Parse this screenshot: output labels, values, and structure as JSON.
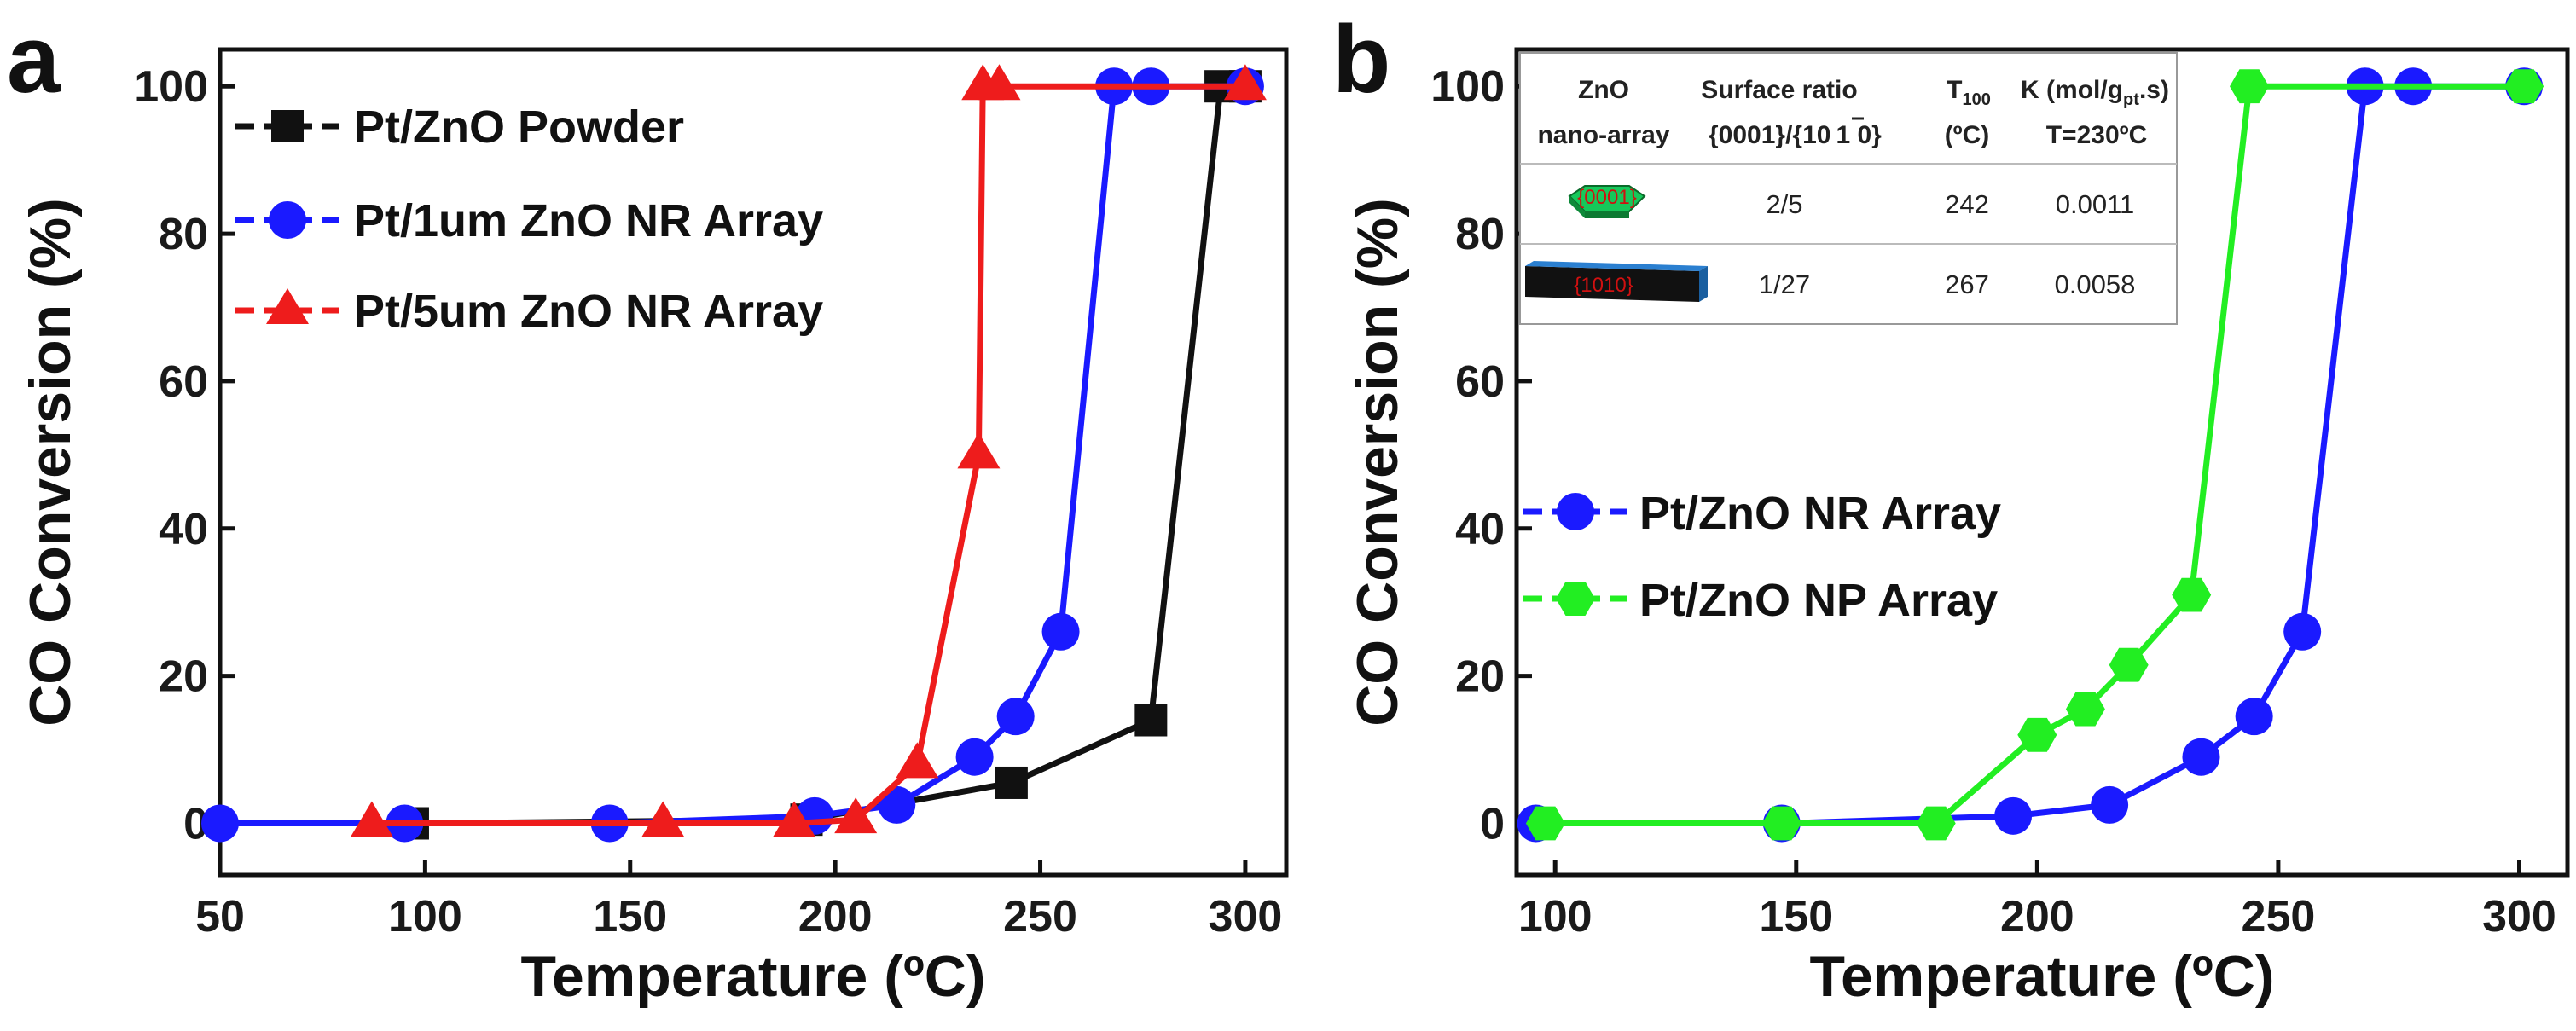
{
  "chart_data": [
    {
      "type": "line",
      "panel_label": "a",
      "xlabel": "Temperature (ºC)",
      "ylabel": "CO Conversion (%)",
      "xlim": [
        50,
        310
      ],
      "ylim": [
        -7,
        105
      ],
      "xticks": [
        "50",
        "100",
        "150",
        "200",
        "250",
        "300"
      ],
      "yticks": [
        "0",
        "20",
        "40",
        "60",
        "80",
        "100"
      ],
      "legend_position": "top-left",
      "series": [
        {
          "name": "Pt/ZnO Powder",
          "color": "#111111",
          "marker": "square",
          "x": [
            97,
            193,
            243,
            277,
            294,
            300
          ],
          "y": [
            0,
            0.5,
            5.5,
            14,
            100,
            100
          ]
        },
        {
          "name": "Pt/1um ZnO NR Array",
          "color": "#1a1aff",
          "marker": "circle",
          "x": [
            50,
            95,
            145,
            195,
            215,
            234,
            244,
            255,
            268,
            277,
            300
          ],
          "y": [
            0,
            0,
            0,
            1,
            2.5,
            9,
            14.5,
            26,
            100,
            100,
            100
          ]
        },
        {
          "name": "Pt/5um ZnO NR Array",
          "color": "#ee1c1c",
          "marker": "triangle",
          "x": [
            87,
            158,
            190,
            205,
            220,
            235,
            236,
            240,
            300
          ],
          "y": [
            0,
            0,
            0,
            0.5,
            8,
            50,
            100,
            100,
            100
          ]
        }
      ]
    },
    {
      "type": "line",
      "panel_label": "b",
      "xlabel": "Temperature (ºC)",
      "ylabel": "CO Conversion (%)",
      "xlim": [
        92,
        310
      ],
      "ylim": [
        -7,
        105
      ],
      "xticks": [
        "100",
        "150",
        "200",
        "250",
        "300"
      ],
      "yticks": [
        "0",
        "20",
        "40",
        "60",
        "80",
        "100"
      ],
      "legend_position": "middle-left",
      "series": [
        {
          "name": "Pt/ZnO NR Array",
          "color": "#1a1aff",
          "marker": "circle",
          "x": [
            96,
            147,
            195,
            215,
            234,
            245,
            255,
            268,
            278,
            301
          ],
          "y": [
            0,
            0,
            1,
            2.5,
            9,
            14.5,
            26,
            100,
            100,
            100
          ]
        },
        {
          "name": "Pt/ZnO NP Array",
          "color": "#22ee22",
          "marker": "hexagon",
          "x": [
            98,
            147,
            179,
            200,
            210,
            219,
            232,
            244,
            301
          ],
          "y": [
            0,
            0,
            0,
            12,
            15.5,
            21.5,
            31,
            100,
            100
          ]
        }
      ],
      "inset_table": {
        "header_row1": [
          "ZnO",
          "Surface ratio",
          "T",
          "K (mol/g",
          ".s)"
        ],
        "header_row2": [
          "nano-array",
          "{0001}/{10",
          "1",
          " 0}",
          "(ºC)",
          "T=230ºC"
        ],
        "t_subscript": "100",
        "k_subscript": "pt",
        "rows": [
          {
            "facet": "{0001}",
            "ratio": "2/5",
            "t100": "242",
            "k": "0.0011"
          },
          {
            "facet": "{1010}",
            "ratio": "1/27",
            "t100": "267",
            "k": "0.0058"
          }
        ]
      }
    }
  ]
}
